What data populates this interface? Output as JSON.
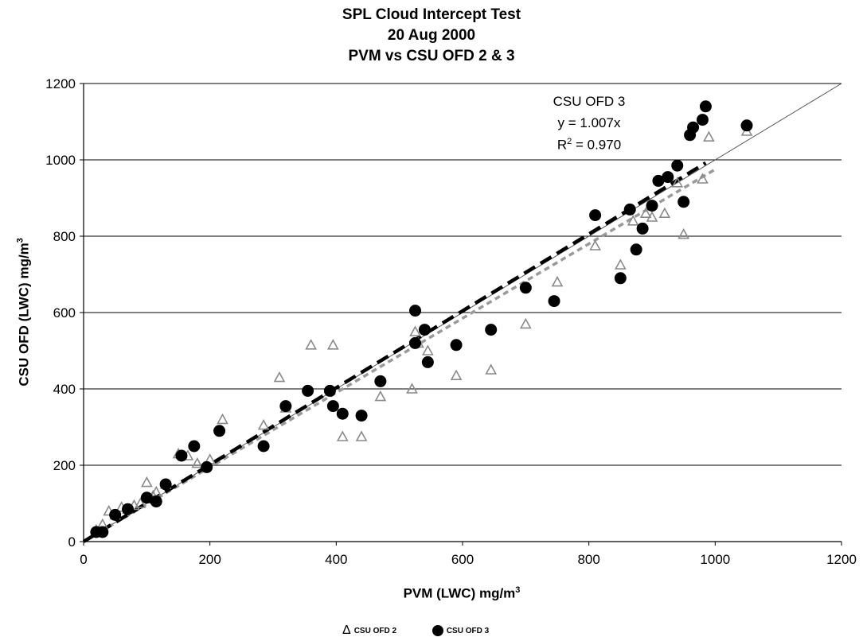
{
  "chart_data": {
    "type": "scatter",
    "title": [
      "SPL Cloud Intercept Test",
      "20 Aug 2000",
      "PVM vs CSU OFD 2 & 3"
    ],
    "xlabel": "PVM (LWC) mg/m",
    "xlabel_sup": "3",
    "ylabel": "CSU OFD (LWC) mg/m",
    "ylabel_sup": "3",
    "xlim": [
      0,
      1200
    ],
    "ylim": [
      0,
      1200
    ],
    "x_ticks": [
      0,
      200,
      400,
      600,
      800,
      1000,
      1200
    ],
    "y_ticks": [
      0,
      200,
      400,
      600,
      800,
      1000,
      1200
    ],
    "grid": "horizontal",
    "legend_position": "bottom",
    "annotation": {
      "series": "CSU OFD 3",
      "equation": "y = 1.007x",
      "r2_prefix": "R",
      "r2_sup": "2",
      "r2_value": " = 0.970"
    },
    "series": [
      {
        "name": "CSU OFD 2",
        "marker": "triangle",
        "color": "#8a8a8a",
        "fit_slope": 0.975,
        "x": [
          20,
          25,
          30,
          40,
          50,
          60,
          70,
          80,
          90,
          100,
          110,
          115,
          130,
          150,
          165,
          180,
          200,
          220,
          285,
          310,
          320,
          360,
          395,
          410,
          440,
          470,
          520,
          525,
          530,
          545,
          590,
          645,
          700,
          750,
          810,
          850,
          870,
          890,
          900,
          920,
          940,
          950,
          980,
          990,
          1050
        ],
        "y": [
          30,
          25,
          45,
          80,
          70,
          90,
          85,
          95,
          100,
          155,
          120,
          130,
          150,
          230,
          225,
          205,
          215,
          320,
          305,
          430,
          350,
          515,
          515,
          275,
          275,
          380,
          400,
          550,
          520,
          500,
          435,
          450,
          570,
          680,
          775,
          725,
          840,
          860,
          850,
          860,
          940,
          805,
          950,
          1060,
          1075
        ]
      },
      {
        "name": "CSU OFD 3",
        "marker": "circle",
        "color": "#000000",
        "fit_slope": 1.007,
        "x": [
          20,
          30,
          50,
          70,
          100,
          115,
          130,
          155,
          175,
          195,
          215,
          285,
          320,
          355,
          390,
          395,
          410,
          440,
          470,
          525,
          525,
          540,
          545,
          590,
          645,
          700,
          745,
          810,
          850,
          865,
          875,
          885,
          900,
          910,
          925,
          940,
          950,
          960,
          965,
          980,
          985,
          1050
        ],
        "y": [
          25,
          25,
          70,
          85,
          115,
          105,
          150,
          225,
          250,
          195,
          290,
          250,
          355,
          395,
          395,
          355,
          335,
          330,
          420,
          605,
          520,
          555,
          470,
          515,
          555,
          665,
          630,
          855,
          690,
          870,
          765,
          820,
          880,
          945,
          955,
          985,
          890,
          1065,
          1085,
          1105,
          1140,
          1090
        ]
      }
    ],
    "identity_line": {
      "from": [
        0,
        0
      ],
      "to": [
        1200,
        1200
      ]
    }
  }
}
